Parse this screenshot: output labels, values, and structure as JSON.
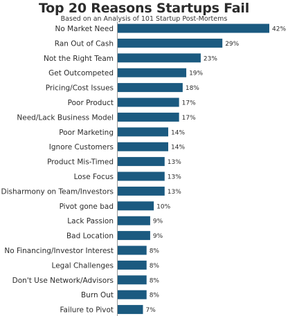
{
  "chart_data": {
    "type": "bar",
    "orientation": "horizontal",
    "title": "Top 20 Reasons Startups Fail",
    "subtitle": "Based on an Analysis of 101 Startup Post-Mortems",
    "categories": [
      "No Market Need",
      "Ran Out of Cash",
      "Not the Right Team",
      "Get Outcompeted",
      "Pricing/Cost Issues",
      "Poor Product",
      "Need/Lack Business Model",
      "Poor Marketing",
      "Ignore Customers",
      "Product Mis-Timed",
      "Lose Focus",
      "Disharmony on Team/Investors",
      "Pivot gone bad",
      "Lack Passion",
      "Bad Location",
      "No Financing/Investor Interest",
      "Legal Challenges",
      "Don't Use Network/Advisors",
      "Burn Out",
      "Failure to Pivot"
    ],
    "values": [
      42,
      29,
      23,
      19,
      18,
      17,
      17,
      14,
      14,
      13,
      13,
      13,
      10,
      9,
      9,
      8,
      8,
      8,
      8,
      7
    ],
    "value_labels": [
      "42%",
      "29%",
      "23%",
      "19%",
      "18%",
      "17%",
      "17%",
      "14%",
      "14%",
      "13%",
      "13%",
      "13%",
      "10%",
      "9%",
      "9%",
      "8%",
      "8%",
      "8%",
      "8%",
      "7%"
    ],
    "value_unit": "%",
    "xlim": [
      0,
      42
    ],
    "grid": false,
    "legend": "none",
    "colors": {
      "bar": "#1b5a80",
      "text": "#2b2b2b",
      "axis": "#9a9a9a"
    }
  }
}
